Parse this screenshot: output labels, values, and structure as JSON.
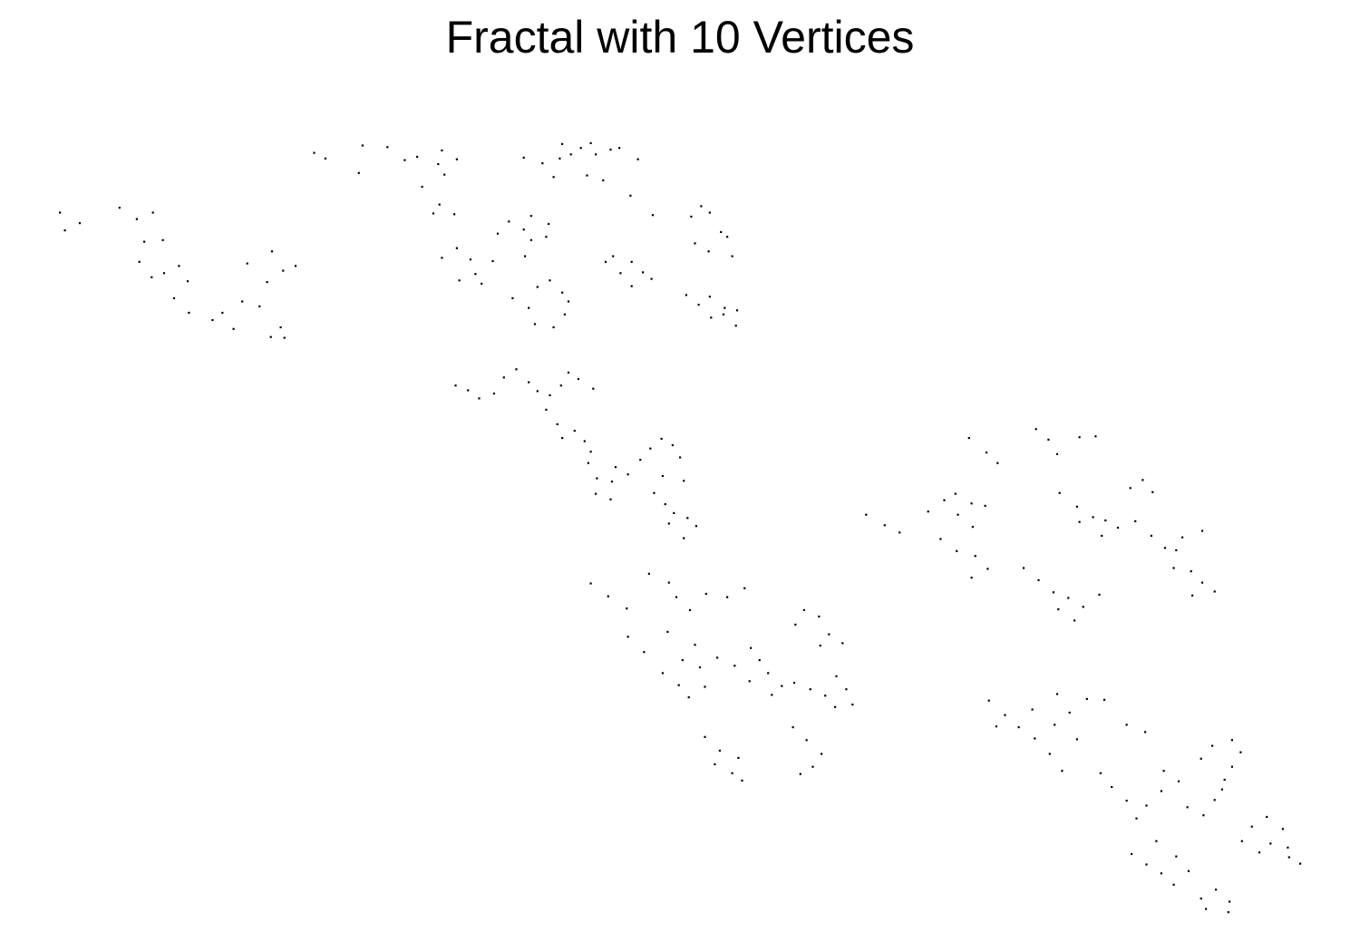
{
  "chart_data": {
    "type": "scatter",
    "title": "Fractal with 10 Vertices",
    "xlabel": "",
    "ylabel": "",
    "grid": false,
    "axes_visible": false,
    "legend": "none",
    "point_color": "#000000",
    "background": "#ffffff",
    "xlim": [
      0,
      1
    ],
    "ylim": [
      0,
      1
    ],
    "clusters": [
      {
        "name": "c1",
        "points": [
          [
            0.0,
            0.866
          ],
          [
            0.004,
            0.844
          ],
          [
            0.016,
            0.853
          ],
          [
            0.048,
            0.872
          ],
          [
            0.062,
            0.858
          ],
          [
            0.075,
            0.866
          ],
          [
            0.064,
            0.805
          ],
          [
            0.074,
            0.786
          ],
          [
            0.084,
            0.791
          ],
          [
            0.096,
            0.8
          ],
          [
            0.068,
            0.83
          ],
          [
            0.083,
            0.832
          ],
          [
            0.103,
            0.781
          ],
          [
            0.092,
            0.76
          ],
          [
            0.104,
            0.742
          ],
          [
            0.131,
            0.742
          ],
          [
            0.14,
            0.722
          ],
          [
            0.123,
            0.733
          ],
          [
            0.147,
            0.756
          ],
          [
            0.161,
            0.75
          ],
          [
            0.178,
            0.724
          ],
          [
            0.181,
            0.711
          ],
          [
            0.17,
            0.712
          ],
          [
            0.167,
            0.78
          ],
          [
            0.151,
            0.803
          ],
          [
            0.171,
            0.818
          ],
          [
            0.19,
            0.8
          ],
          [
            0.18,
            0.794
          ]
        ]
      },
      {
        "name": "c2",
        "points": [
          [
            0.205,
            0.94
          ],
          [
            0.214,
            0.933
          ],
          [
            0.244,
            0.949
          ],
          [
            0.264,
            0.947
          ],
          [
            0.278,
            0.931
          ],
          [
            0.288,
            0.935
          ],
          [
            0.241,
            0.915
          ],
          [
            0.308,
            0.943
          ],
          [
            0.305,
            0.926
          ],
          [
            0.31,
            0.913
          ],
          [
            0.32,
            0.932
          ],
          [
            0.292,
            0.898
          ],
          [
            0.306,
            0.876
          ],
          [
            0.318,
            0.864
          ],
          [
            0.301,
            0.865
          ],
          [
            0.374,
            0.934
          ],
          [
            0.389,
            0.927
          ],
          [
            0.398,
            0.91
          ],
          [
            0.403,
            0.933
          ],
          [
            0.405,
            0.951
          ],
          [
            0.412,
            0.938
          ],
          [
            0.42,
            0.946
          ],
          [
            0.428,
            0.952
          ],
          [
            0.432,
            0.938
          ],
          [
            0.444,
            0.944
          ],
          [
            0.451,
            0.946
          ],
          [
            0.466,
            0.932
          ],
          [
            0.425,
            0.912
          ],
          [
            0.438,
            0.906
          ],
          [
            0.46,
            0.887
          ],
          [
            0.478,
            0.863
          ],
          [
            0.308,
            0.81
          ],
          [
            0.32,
            0.822
          ],
          [
            0.331,
            0.808
          ],
          [
            0.335,
            0.79
          ],
          [
            0.322,
            0.782
          ],
          [
            0.34,
            0.778
          ],
          [
            0.349,
            0.806
          ],
          [
            0.353,
            0.84
          ],
          [
            0.362,
            0.855
          ],
          [
            0.38,
            0.862
          ],
          [
            0.374,
            0.845
          ],
          [
            0.38,
            0.832
          ],
          [
            0.392,
            0.836
          ],
          [
            0.375,
            0.812
          ],
          [
            0.394,
            0.852
          ],
          [
            0.365,
            0.76
          ],
          [
            0.378,
            0.748
          ],
          [
            0.385,
            0.774
          ],
          [
            0.395,
            0.782
          ],
          [
            0.405,
            0.767
          ],
          [
            0.383,
            0.728
          ],
          [
            0.398,
            0.724
          ],
          [
            0.407,
            0.74
          ],
          [
            0.41,
            0.756
          ],
          [
            0.44,
            0.805
          ],
          [
            0.452,
            0.791
          ],
          [
            0.461,
            0.775
          ],
          [
            0.47,
            0.792
          ],
          [
            0.477,
            0.784
          ],
          [
            0.461,
            0.805
          ],
          [
            0.446,
            0.812
          ],
          [
            0.509,
            0.861
          ],
          [
            0.517,
            0.874
          ],
          [
            0.524,
            0.866
          ],
          [
            0.533,
            0.842
          ],
          [
            0.512,
            0.828
          ],
          [
            0.523,
            0.818
          ],
          [
            0.538,
            0.836
          ],
          [
            0.542,
            0.812
          ],
          [
            0.505,
            0.764
          ],
          [
            0.515,
            0.752
          ],
          [
            0.525,
            0.736
          ],
          [
            0.535,
            0.74
          ],
          [
            0.524,
            0.762
          ],
          [
            0.536,
            0.748
          ],
          [
            0.545,
            0.726
          ],
          [
            0.546,
            0.745
          ]
        ]
      },
      {
        "name": "c3",
        "points": [
          [
            0.319,
            0.652
          ],
          [
            0.329,
            0.646
          ],
          [
            0.338,
            0.636
          ],
          [
            0.35,
            0.642
          ],
          [
            0.358,
            0.662
          ],
          [
            0.368,
            0.672
          ],
          [
            0.378,
            0.656
          ],
          [
            0.385,
            0.645
          ],
          [
            0.395,
            0.64
          ],
          [
            0.404,
            0.652
          ],
          [
            0.41,
            0.668
          ],
          [
            0.418,
            0.66
          ],
          [
            0.43,
            0.648
          ],
          [
            0.392,
            0.622
          ],
          [
            0.401,
            0.604
          ],
          [
            0.415,
            0.596
          ],
          [
            0.423,
            0.583
          ],
          [
            0.405,
            0.587
          ],
          [
            0.428,
            0.57
          ],
          [
            0.426,
            0.556
          ],
          [
            0.433,
            0.537
          ],
          [
            0.445,
            0.533
          ],
          [
            0.448,
            0.551
          ],
          [
            0.432,
            0.518
          ],
          [
            0.444,
            0.511
          ],
          [
            0.458,
            0.542
          ],
          [
            0.468,
            0.56
          ],
          [
            0.476,
            0.574
          ],
          [
            0.485,
            0.586
          ],
          [
            0.494,
            0.578
          ],
          [
            0.5,
            0.563
          ],
          [
            0.486,
            0.54
          ],
          [
            0.503,
            0.534
          ],
          [
            0.479,
            0.519
          ],
          [
            0.488,
            0.505
          ],
          [
            0.495,
            0.494
          ],
          [
            0.506,
            0.488
          ],
          [
            0.513,
            0.478
          ],
          [
            0.503,
            0.463
          ],
          [
            0.491,
            0.481
          ]
        ]
      },
      {
        "name": "c4",
        "points": [
          [
            0.428,
            0.407
          ],
          [
            0.442,
            0.391
          ],
          [
            0.457,
            0.376
          ],
          [
            0.475,
            0.419
          ],
          [
            0.491,
            0.408
          ],
          [
            0.497,
            0.39
          ],
          [
            0.508,
            0.374
          ],
          [
            0.521,
            0.394
          ],
          [
            0.538,
            0.39
          ],
          [
            0.552,
            0.401
          ],
          [
            0.458,
            0.341
          ],
          [
            0.471,
            0.322
          ],
          [
            0.49,
            0.347
          ],
          [
            0.502,
            0.312
          ],
          [
            0.512,
            0.331
          ],
          [
            0.486,
            0.296
          ],
          [
            0.499,
            0.281
          ],
          [
            0.507,
            0.266
          ],
          [
            0.516,
            0.303
          ],
          [
            0.53,
            0.315
          ],
          [
            0.52,
            0.279
          ],
          [
            0.544,
            0.305
          ],
          [
            0.557,
            0.327
          ],
          [
            0.564,
            0.312
          ],
          [
            0.571,
            0.296
          ],
          [
            0.556,
            0.286
          ],
          [
            0.574,
            0.269
          ],
          [
            0.582,
            0.28
          ],
          [
            0.593,
            0.356
          ],
          [
            0.6,
            0.374
          ],
          [
            0.612,
            0.366
          ],
          [
            0.62,
            0.344
          ],
          [
            0.631,
            0.333
          ],
          [
            0.613,
            0.33
          ],
          [
            0.592,
            0.284
          ],
          [
            0.605,
            0.276
          ],
          [
            0.617,
            0.268
          ],
          [
            0.626,
            0.292
          ],
          [
            0.634,
            0.276
          ],
          [
            0.639,
            0.257
          ],
          [
            0.625,
            0.254
          ],
          [
            0.591,
            0.229
          ],
          [
            0.602,
            0.213
          ],
          [
            0.614,
            0.196
          ],
          [
            0.607,
            0.18
          ],
          [
            0.597,
            0.171
          ],
          [
            0.52,
            0.217
          ],
          [
            0.532,
            0.2
          ],
          [
            0.547,
            0.191
          ],
          [
            0.528,
            0.183
          ],
          [
            0.542,
            0.172
          ],
          [
            0.55,
            0.163
          ]
        ]
      },
      {
        "name": "c5",
        "points": [
          [
            0.65,
            0.492
          ],
          [
            0.665,
            0.479
          ],
          [
            0.677,
            0.47
          ],
          [
            0.7,
            0.496
          ],
          [
            0.713,
            0.51
          ],
          [
            0.722,
            0.518
          ],
          [
            0.735,
            0.506
          ],
          [
            0.746,
            0.503
          ],
          [
            0.724,
            0.492
          ],
          [
            0.736,
            0.477
          ],
          [
            0.71,
            0.462
          ],
          [
            0.723,
            0.447
          ],
          [
            0.738,
            0.441
          ],
          [
            0.748,
            0.425
          ],
          [
            0.735,
            0.414
          ],
          [
            0.733,
            0.587
          ],
          [
            0.747,
            0.569
          ],
          [
            0.756,
            0.556
          ],
          [
            0.787,
            0.598
          ],
          [
            0.797,
            0.585
          ],
          [
            0.804,
            0.567
          ],
          [
            0.822,
            0.588
          ],
          [
            0.835,
            0.589
          ],
          [
            0.806,
            0.519
          ],
          [
            0.82,
            0.502
          ],
          [
            0.833,
            0.489
          ],
          [
            0.843,
            0.485
          ],
          [
            0.822,
            0.483
          ],
          [
            0.84,
            0.466
          ],
          [
            0.853,
            0.476
          ],
          [
            0.777,
            0.426
          ],
          [
            0.789,
            0.411
          ],
          [
            0.801,
            0.396
          ],
          [
            0.805,
            0.375
          ],
          [
            0.818,
            0.361
          ],
          [
            0.825,
            0.378
          ],
          [
            0.838,
            0.393
          ],
          [
            0.813,
            0.389
          ],
          [
            0.863,
            0.525
          ],
          [
            0.873,
            0.535
          ],
          [
            0.881,
            0.52
          ],
          [
            0.867,
            0.484
          ],
          [
            0.88,
            0.466
          ],
          [
            0.891,
            0.451
          ],
          [
            0.905,
            0.464
          ],
          [
            0.921,
            0.472
          ],
          [
            0.898,
            0.426
          ],
          [
            0.912,
            0.422
          ],
          [
            0.921,
            0.408
          ],
          [
            0.931,
            0.397
          ],
          [
            0.913,
            0.392
          ],
          [
            0.9,
            0.448
          ]
        ]
      },
      {
        "name": "c6",
        "points": [
          [
            0.749,
            0.262
          ],
          [
            0.762,
            0.244
          ],
          [
            0.773,
            0.229
          ],
          [
            0.786,
            0.215
          ],
          [
            0.755,
            0.23
          ],
          [
            0.784,
            0.251
          ],
          [
            0.802,
            0.232
          ],
          [
            0.82,
            0.214
          ],
          [
            0.814,
            0.247
          ],
          [
            0.804,
            0.27
          ],
          [
            0.798,
            0.196
          ],
          [
            0.808,
            0.175
          ],
          [
            0.828,
            0.264
          ],
          [
            0.842,
            0.263
          ],
          [
            0.86,
            0.232
          ],
          [
            0.875,
            0.223
          ],
          [
            0.839,
            0.172
          ],
          [
            0.848,
            0.155
          ],
          [
            0.86,
            0.138
          ],
          [
            0.868,
            0.116
          ],
          [
            0.876,
            0.132
          ],
          [
            0.888,
            0.15
          ],
          [
            0.902,
            0.162
          ],
          [
            0.89,
            0.175
          ],
          [
            0.909,
            0.13
          ],
          [
            0.922,
            0.12
          ],
          [
            0.931,
            0.139
          ],
          [
            0.937,
            0.152
          ],
          [
            0.92,
            0.19
          ],
          [
            0.929,
            0.206
          ],
          [
            0.945,
            0.213
          ],
          [
            0.952,
            0.198
          ],
          [
            0.945,
            0.18
          ],
          [
            0.939,
            0.164
          ],
          [
            0.953,
            0.088
          ],
          [
            0.961,
            0.106
          ],
          [
            0.973,
            0.118
          ],
          [
            0.986,
            0.103
          ],
          [
            0.976,
            0.085
          ],
          [
            0.99,
            0.08
          ],
          [
            0.991,
            0.068
          ],
          [
            1.0,
            0.06
          ],
          [
            0.967,
            0.074
          ],
          [
            0.864,
            0.072
          ],
          [
            0.876,
            0.059
          ],
          [
            0.888,
            0.048
          ],
          [
            0.9,
            0.069
          ],
          [
            0.91,
            0.051
          ],
          [
            0.898,
            0.034
          ],
          [
            0.884,
            0.088
          ],
          [
            0.92,
            0.017
          ],
          [
            0.932,
            0.028
          ],
          [
            0.942,
            0.0
          ],
          [
            0.924,
            0.004
          ],
          [
            0.943,
            0.013
          ]
        ]
      }
    ]
  }
}
